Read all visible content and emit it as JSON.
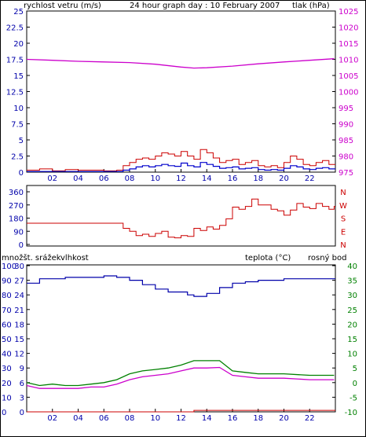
{
  "title": "24 hour graph day : 10 February 2007",
  "colors": {
    "wind": "#cc0000",
    "wind_avg": "#0000cc",
    "pressure": "#cc00cc",
    "direction": "#cc0000",
    "humidity": "#0000aa",
    "temperature": "#008000",
    "dewpoint": "#cc00cc",
    "precip": "#cc0000",
    "axis": "#000000"
  },
  "chart_data": [
    {
      "type": "line",
      "label_left": "rychlost vetru (m/s)",
      "label_right": "tlak (hPa)",
      "x_ticks": [
        "02",
        "04",
        "06",
        "08",
        "10",
        "12",
        "14",
        "16",
        "18",
        "20",
        "22"
      ],
      "ylim_left": [
        0,
        25
      ],
      "yticks_left": [
        "25",
        "22.5",
        "20",
        "17.5",
        "15",
        "12.5",
        "10",
        "7.5",
        "5",
        "2.5",
        "0"
      ],
      "ylim_right": [
        975,
        1025
      ],
      "yticks_right": [
        "1025",
        "1020",
        "1015",
        "1010",
        "1005",
        "1000",
        "995",
        "990",
        "985",
        "980",
        "975"
      ],
      "series": [
        {
          "key": "wind_gust",
          "x": [
            0,
            1,
            2,
            3,
            4,
            5,
            6,
            7,
            7.5,
            8,
            8.5,
            9,
            9.5,
            10,
            10.5,
            11,
            11.5,
            12,
            12.5,
            13,
            13.5,
            14,
            14.5,
            15,
            15.5,
            16,
            16.5,
            17,
            17.5,
            18,
            18.5,
            19,
            19.5,
            20,
            20.5,
            21,
            21.5,
            22,
            22.5,
            23,
            23.5
          ],
          "y": [
            0.3,
            0.5,
            0.2,
            0.4,
            0.3,
            0.3,
            0.2,
            0.3,
            1.0,
            1.5,
            2.0,
            2.2,
            2.0,
            2.5,
            3.0,
            2.8,
            2.5,
            3.2,
            2.5,
            2.0,
            3.5,
            3.0,
            2.2,
            1.5,
            1.8,
            2.0,
            1.2,
            1.5,
            1.8,
            1.0,
            0.8,
            1.0,
            0.7,
            1.5,
            2.5,
            2.0,
            1.2,
            1.0,
            1.5,
            1.8,
            1.2
          ]
        },
        {
          "key": "wind_avg",
          "x": [
            0,
            1,
            2,
            3,
            4,
            5,
            6,
            7,
            7.5,
            8,
            8.5,
            9,
            9.5,
            10,
            10.5,
            11,
            11.5,
            12,
            12.5,
            13,
            13.5,
            14,
            14.5,
            15,
            15.5,
            16,
            16.5,
            17,
            17.5,
            18,
            18.5,
            19,
            19.5,
            20,
            20.5,
            21,
            21.5,
            22,
            22.5,
            23,
            23.5
          ],
          "y": [
            0.1,
            0.1,
            0.1,
            0.1,
            0.1,
            0.1,
            0.1,
            0.1,
            0.3,
            0.5,
            0.8,
            1.0,
            0.8,
            1.0,
            1.2,
            1.0,
            0.9,
            1.4,
            1.0,
            0.8,
            1.5,
            1.2,
            0.9,
            0.6,
            0.7,
            0.8,
            0.5,
            0.6,
            0.7,
            0.4,
            0.3,
            0.4,
            0.3,
            0.6,
            1.0,
            0.8,
            0.5,
            0.4,
            0.6,
            0.7,
            0.5
          ]
        },
        {
          "key": "pressure",
          "axis": "right",
          "x": [
            0,
            2,
            4,
            6,
            8,
            10,
            12,
            13,
            14,
            16,
            18,
            20,
            22,
            23.9
          ],
          "y": [
            1010.0,
            1009.7,
            1009.4,
            1009.2,
            1009.0,
            1008.5,
            1007.6,
            1007.3,
            1007.4,
            1007.9,
            1008.6,
            1009.2,
            1009.7,
            1010.2
          ]
        }
      ]
    },
    {
      "type": "line",
      "label_right": [
        "N",
        "W",
        "S",
        "E",
        "N"
      ],
      "ylim_left": [
        0,
        360
      ],
      "yticks_left": [
        "360",
        "270",
        "180",
        "90",
        "0"
      ],
      "series": [
        {
          "key": "direction",
          "x": [
            0,
            4,
            7.0,
            7.5,
            8,
            8.5,
            9,
            9.5,
            10,
            10.5,
            11,
            11.5,
            12,
            12.5,
            13,
            13.5,
            14,
            14.5,
            15,
            15.5,
            16,
            16.5,
            17,
            17.5,
            18,
            18.5,
            19,
            19.5,
            20,
            20.5,
            21,
            21.5,
            22,
            22.5,
            23,
            23.5,
            23.9
          ],
          "y": [
            145,
            145,
            145,
            110,
            90,
            60,
            70,
            55,
            75,
            90,
            50,
            45,
            60,
            55,
            110,
            95,
            120,
            105,
            130,
            175,
            255,
            240,
            260,
            310,
            270,
            270,
            240,
            230,
            200,
            235,
            280,
            255,
            245,
            280,
            260,
            240,
            260
          ]
        }
      ]
    },
    {
      "type": "line",
      "label_left": "množšt. srážek",
      "label_left2": "vlhkost",
      "label_right": "teplota (°C)",
      "label_right2": "rosný bod",
      "yticks_outer": [
        "100",
        "90",
        "80",
        "70",
        "60",
        "50",
        "40",
        "30",
        "20",
        "10",
        "0"
      ],
      "yticks_inner": [
        "30",
        "27",
        "24",
        "21",
        "18",
        "15",
        "12",
        "9",
        "6",
        "3",
        "0"
      ],
      "ylim_right": [
        -10,
        40
      ],
      "yticks_right": [
        "40",
        "35",
        "30",
        "25",
        "20",
        "15",
        "10",
        "5",
        "0",
        "-5",
        "-10"
      ],
      "series": [
        {
          "key": "humidity",
          "axis": "pct",
          "x": [
            0,
            1,
            3,
            5,
            6,
            7,
            8,
            9,
            10,
            11,
            12,
            12.5,
            13,
            14,
            15,
            16,
            17,
            18,
            20,
            22,
            23.9
          ],
          "y": [
            88,
            91,
            92,
            92,
            93,
            92,
            90,
            87,
            84,
            82,
            82,
            80,
            79,
            81,
            85,
            88,
            89,
            90,
            91,
            91,
            91
          ]
        },
        {
          "key": "temperature",
          "axis": "right",
          "x": [
            0,
            1,
            2,
            3,
            4,
            5,
            6,
            7,
            8,
            9,
            10,
            11,
            12,
            13,
            14,
            15,
            16,
            17,
            18,
            20,
            22,
            23.9
          ],
          "y": [
            0,
            -1,
            -0.5,
            -1,
            -1,
            -0.5,
            0,
            1,
            3,
            4,
            4.5,
            5,
            6,
            7.5,
            7.5,
            7.5,
            4,
            3.5,
            3,
            3,
            2.5,
            2.5
          ]
        },
        {
          "key": "dewpoint",
          "axis": "right",
          "x": [
            0,
            1,
            2,
            3,
            4,
            5,
            6,
            7,
            8,
            9,
            10,
            11,
            12,
            13,
            14,
            15,
            16,
            17,
            18,
            20,
            22,
            23.9
          ],
          "y": [
            -1,
            -2,
            -2,
            -2,
            -2,
            -1.5,
            -1.5,
            -0.5,
            1,
            2,
            2.5,
            3,
            4,
            5,
            5,
            5.2,
            2.5,
            2,
            1.5,
            1.5,
            1,
            1
          ]
        },
        {
          "key": "precip",
          "axis": "inner",
          "x": [
            0,
            12.9,
            13,
            23.9
          ],
          "y": [
            0,
            0,
            0.3,
            0.3
          ]
        }
      ]
    }
  ]
}
